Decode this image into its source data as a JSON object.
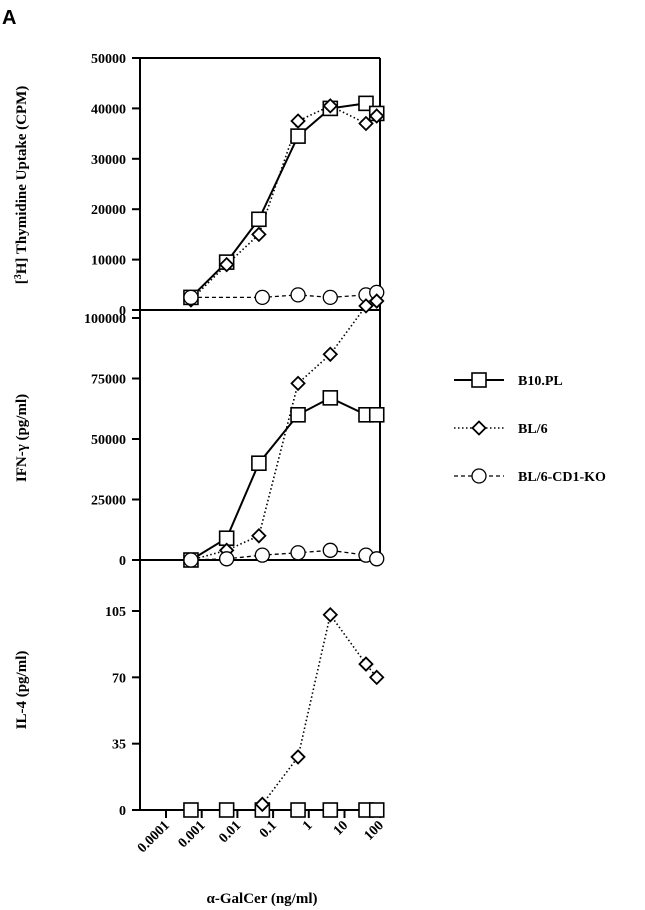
{
  "figure": {
    "panel_letter": "A",
    "x_label": "α-GalCer (ng/ml)"
  },
  "legend": [
    {
      "name": "B10.PL",
      "marker": "square",
      "dash": "solid"
    },
    {
      "name": "BL/6",
      "marker": "diamond",
      "dash": "dotted"
    },
    {
      "name": "BL/6-CD1-KO",
      "marker": "circle",
      "dash": "dashed"
    }
  ],
  "chart_data": [
    {
      "type": "line",
      "ylabel_prefix": "[",
      "ylabel_sup": "3",
      "ylabel_rest": "H] Thymidine Uptake (CPM)",
      "xscale": "log",
      "xticks": [
        "0.0001",
        "0.001",
        "0.01",
        "0.1",
        "1",
        "10",
        "100"
      ],
      "yticks": [
        "0",
        "10000",
        "20000",
        "30000",
        "40000",
        "50000"
      ],
      "ylim": [
        0,
        50000
      ],
      "series": [
        {
          "name": "B10.PL",
          "x": [
            0.0005,
            0.005,
            0.04,
            0.5,
            4,
            40,
            80
          ],
          "y": [
            2500,
            9500,
            18000,
            34500,
            40000,
            41000,
            39000
          ]
        },
        {
          "name": "BL/6",
          "x": [
            0.0005,
            0.005,
            0.04,
            0.5,
            4,
            40,
            80
          ],
          "y": [
            2000,
            9000,
            15000,
            37500,
            40500,
            37000,
            38500
          ]
        },
        {
          "name": "BL/6-CD1-KO",
          "x": [
            0.0005,
            0.05,
            0.5,
            4,
            40,
            80
          ],
          "y": [
            2500,
            2500,
            3000,
            2500,
            3000,
            3500
          ]
        }
      ]
    },
    {
      "type": "line",
      "ylabel": "IFN-γ (pg/ml)",
      "xscale": "log",
      "yticks": [
        "0",
        "25000",
        "50000",
        "75000",
        "100000"
      ],
      "ylim": [
        0,
        115000
      ],
      "series": [
        {
          "name": "B10.PL",
          "x": [
            0.0005,
            0.005,
            0.04,
            0.5,
            4,
            40,
            80
          ],
          "y": [
            0,
            9000,
            40000,
            60000,
            67000,
            60000,
            60000
          ]
        },
        {
          "name": "BL/6",
          "x": [
            0.0005,
            0.005,
            0.04,
            0.5,
            4,
            40,
            80
          ],
          "y": [
            0,
            4000,
            10000,
            73000,
            85000,
            105000,
            107000
          ]
        },
        {
          "name": "BL/6-CD1-KO",
          "x": [
            0.0005,
            0.005,
            0.05,
            0.5,
            4,
            40,
            80
          ],
          "y": [
            0,
            500,
            2000,
            3000,
            4000,
            2000,
            500
          ]
        }
      ]
    },
    {
      "type": "line",
      "ylabel": "IL-4 (pg/ml)",
      "xscale": "log",
      "yticks": [
        "0",
        "35",
        "70",
        "105"
      ],
      "ylim": [
        0,
        115
      ],
      "series": [
        {
          "name": "B10.PL",
          "x": [
            0.0005,
            0.005,
            0.05,
            0.5,
            4,
            40,
            80
          ],
          "y": [
            0,
            0,
            0,
            0,
            0,
            0,
            0
          ]
        },
        {
          "name": "BL/6",
          "x": [
            0.05,
            0.5,
            4,
            40,
            80
          ],
          "y": [
            3,
            28,
            103,
            77,
            70
          ]
        }
      ]
    }
  ]
}
